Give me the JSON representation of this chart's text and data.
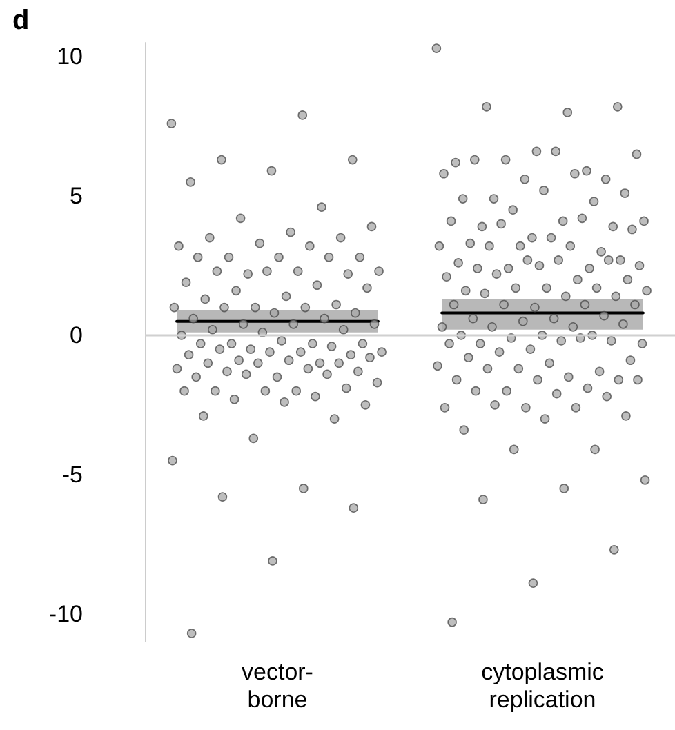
{
  "chart_data": {
    "type": "scatter",
    "title": "d",
    "categories": [
      "vector-\nborne",
      "cytoplasmic\nreplication"
    ],
    "ylim": [
      -11,
      10.5
    ],
    "yticks": [
      -10,
      -5,
      0,
      5,
      10
    ],
    "grid": false,
    "marker": "circle",
    "ref_lines": [
      {
        "axis": "y",
        "value": 0,
        "color": "#d0d0d0"
      }
    ],
    "series": [
      {
        "color": "#a8a8a8",
        "x": [
          "vector-\nborne",
          "vector-\nborne",
          "vector-\nborne",
          "vector-\nborne",
          "vector-\nborne",
          "vector-\nborne",
          "vector-\nborne",
          "vector-\nborne",
          "vector-\nborne",
          "vector-\nborne",
          "vector-\nborne",
          "vector-\nborne",
          "vector-\nborne",
          "vector-\nborne",
          "vector-\nborne",
          "vector-\nborne",
          "vector-\nborne",
          "vector-\nborne",
          "vector-\nborne",
          "vector-\nborne",
          "vector-\nborne",
          "vector-\nborne",
          "vector-\nborne",
          "vector-\nborne",
          "vector-\nborne",
          "vector-\nborne",
          "vector-\nborne",
          "vector-\nborne",
          "vector-\nborne",
          "vector-\nborne",
          "vector-\nborne",
          "vector-\nborne",
          "vector-\nborne",
          "vector-\nborne",
          "vector-\nborne",
          "vector-\nborne",
          "vector-\nborne",
          "vector-\nborne",
          "vector-\nborne",
          "vector-\nborne",
          "vector-\nborne",
          "vector-\nborne",
          "vector-\nborne",
          "vector-\nborne",
          "vector-\nborne",
          "vector-\nborne",
          "vector-\nborne",
          "vector-\nborne",
          "vector-\nborne",
          "vector-\nborne",
          "vector-\nborne",
          "vector-\nborne",
          "vector-\nborne",
          "vector-\nborne",
          "vector-\nborne",
          "vector-\nborne",
          "vector-\nborne",
          "vector-\nborne",
          "vector-\nborne",
          "vector-\nborne",
          "vector-\nborne",
          "vector-\nborne",
          "vector-\nborne",
          "vector-\nborne",
          "vector-\nborne",
          "vector-\nborne",
          "vector-\nborne",
          "vector-\nborne",
          "vector-\nborne",
          "vector-\nborne",
          "vector-\nborne",
          "vector-\nborne",
          "vector-\nborne",
          "vector-\nborne",
          "vector-\nborne",
          "vector-\nborne",
          "vector-\nborne",
          "vector-\nborne",
          "vector-\nborne",
          "vector-\nborne",
          "vector-\nborne",
          "vector-\nborne",
          "vector-\nborne",
          "vector-\nborne",
          "vector-\nborne",
          "vector-\nborne",
          "vector-\nborne",
          "vector-\nborne",
          "vector-\nborne",
          "vector-\nborne",
          "vector-\nborne",
          "vector-\nborne",
          "vector-\nborne",
          "vector-\nborne",
          "vector-\nborne"
        ],
        "values": [
          7.6,
          7.9,
          6.3,
          6.3,
          5.9,
          5.5,
          4.6,
          4.2,
          3.9,
          3.7,
          3.5,
          3.5,
          3.3,
          3.2,
          3.2,
          2.8,
          2.8,
          2.8,
          2.8,
          2.8,
          2.2,
          2.3,
          2.3,
          2.3,
          2.2,
          2.3,
          1.9,
          1.8,
          1.6,
          1.7,
          1.4,
          1.3,
          1.1,
          1.0,
          1.0,
          1.0,
          1.0,
          0.8,
          0.8,
          0.6,
          0.6,
          0.4,
          0.4,
          0.4,
          0.2,
          0.2,
          0.1,
          0.0,
          -0.3,
          -0.3,
          -0.3,
          -0.2,
          -0.3,
          -0.4,
          -0.5,
          -0.6,
          -0.6,
          -0.5,
          -0.7,
          -0.6,
          -0.7,
          -1.0,
          -0.9,
          -0.8,
          -0.9,
          -1.0,
          -1.0,
          -1.0,
          -1.2,
          -1.2,
          -1.3,
          -1.3,
          -1.5,
          -1.5,
          -1.4,
          -1.4,
          -1.7,
          -2.0,
          -2.0,
          -1.9,
          -2.0,
          -2.0,
          -2.2,
          -2.3,
          -2.5,
          -2.4,
          -2.9,
          -3.0,
          -3.7,
          -4.5,
          -5.5,
          -5.8,
          -6.2,
          -8.1,
          -10.7
        ]
      },
      {
        "color": "#a8a8a8",
        "x": [
          "cytoplasmic\nreplication",
          "cytoplasmic\nreplication",
          "cytoplasmic\nreplication",
          "cytoplasmic\nreplication",
          "cytoplasmic\nreplication",
          "cytoplasmic\nreplication",
          "cytoplasmic\nreplication",
          "cytoplasmic\nreplication",
          "cytoplasmic\nreplication",
          "cytoplasmic\nreplication",
          "cytoplasmic\nreplication",
          "cytoplasmic\nreplication",
          "cytoplasmic\nreplication",
          "cytoplasmic\nreplication",
          "cytoplasmic\nreplication",
          "cytoplasmic\nreplication",
          "cytoplasmic\nreplication",
          "cytoplasmic\nreplication",
          "cytoplasmic\nreplication",
          "cytoplasmic\nreplication",
          "cytoplasmic\nreplication",
          "cytoplasmic\nreplication",
          "cytoplasmic\nreplication",
          "cytoplasmic\nreplication",
          "cytoplasmic\nreplication",
          "cytoplasmic\nreplication",
          "cytoplasmic\nreplication",
          "cytoplasmic\nreplication",
          "cytoplasmic\nreplication",
          "cytoplasmic\nreplication",
          "cytoplasmic\nreplication",
          "cytoplasmic\nreplication",
          "cytoplasmic\nreplication",
          "cytoplasmic\nreplication",
          "cytoplasmic\nreplication",
          "cytoplasmic\nreplication",
          "cytoplasmic\nreplication",
          "cytoplasmic\nreplication",
          "cytoplasmic\nreplication",
          "cytoplasmic\nreplication",
          "cytoplasmic\nreplication",
          "cytoplasmic\nreplication",
          "cytoplasmic\nreplication",
          "cytoplasmic\nreplication",
          "cytoplasmic\nreplication",
          "cytoplasmic\nreplication",
          "cytoplasmic\nreplication",
          "cytoplasmic\nreplication",
          "cytoplasmic\nreplication",
          "cytoplasmic\nreplication",
          "cytoplasmic\nreplication",
          "cytoplasmic\nreplication",
          "cytoplasmic\nreplication",
          "cytoplasmic\nreplication",
          "cytoplasmic\nreplication",
          "cytoplasmic\nreplication",
          "cytoplasmic\nreplication",
          "cytoplasmic\nreplication",
          "cytoplasmic\nreplication",
          "cytoplasmic\nreplication",
          "cytoplasmic\nreplication",
          "cytoplasmic\nreplication",
          "cytoplasmic\nreplication",
          "cytoplasmic\nreplication",
          "cytoplasmic\nreplication",
          "cytoplasmic\nreplication",
          "cytoplasmic\nreplication",
          "cytoplasmic\nreplication",
          "cytoplasmic\nreplication",
          "cytoplasmic\nreplication",
          "cytoplasmic\nreplication",
          "cytoplasmic\nreplication",
          "cytoplasmic\nreplication",
          "cytoplasmic\nreplication",
          "cytoplasmic\nreplication",
          "cytoplasmic\nreplication",
          "cytoplasmic\nreplication",
          "cytoplasmic\nreplication",
          "cytoplasmic\nreplication",
          "cytoplasmic\nreplication",
          "cytoplasmic\nreplication",
          "cytoplasmic\nreplication",
          "cytoplasmic\nreplication",
          "cytoplasmic\nreplication",
          "cytoplasmic\nreplication",
          "cytoplasmic\nreplication",
          "cytoplasmic\nreplication",
          "cytoplasmic\nreplication",
          "cytoplasmic\nreplication",
          "cytoplasmic\nreplication",
          "cytoplasmic\nreplication",
          "cytoplasmic\nreplication",
          "cytoplasmic\nreplication",
          "cytoplasmic\nreplication",
          "cytoplasmic\nreplication",
          "cytoplasmic\nreplication",
          "cytoplasmic\nreplication",
          "cytoplasmic\nreplication",
          "cytoplasmic\nreplication",
          "cytoplasmic\nreplication",
          "cytoplasmic\nreplication",
          "cytoplasmic\nreplication",
          "cytoplasmic\nreplication",
          "cytoplasmic\nreplication",
          "cytoplasmic\nreplication",
          "cytoplasmic\nreplication",
          "cytoplasmic\nreplication",
          "cytoplasmic\nreplication",
          "cytoplasmic\nreplication",
          "cytoplasmic\nreplication",
          "cytoplasmic\nreplication",
          "cytoplasmic\nreplication",
          "cytoplasmic\nreplication",
          "cytoplasmic\nreplication",
          "cytoplasmic\nreplication",
          "cytoplasmic\nreplication"
        ],
        "values": [
          10.3,
          8.0,
          8.2,
          8.2,
          6.6,
          6.2,
          5.9,
          6.3,
          6.5,
          6.6,
          6.3,
          5.6,
          5.6,
          5.8,
          5.8,
          4.9,
          5.1,
          5.2,
          4.9,
          4.8,
          4.5,
          4.1,
          4.1,
          3.9,
          3.9,
          3.5,
          4.1,
          4.2,
          4.0,
          3.8,
          3.5,
          3.3,
          3.0,
          3.2,
          3.2,
          3.2,
          3.2,
          2.7,
          2.5,
          2.6,
          2.4,
          2.4,
          2.5,
          2.7,
          2.4,
          2.7,
          2.7,
          2.1,
          2.0,
          2.2,
          2.0,
          1.7,
          1.6,
          1.7,
          1.7,
          1.6,
          1.4,
          1.5,
          1.4,
          1.0,
          1.1,
          1.1,
          1.1,
          1.1,
          0.6,
          0.6,
          0.7,
          0.5,
          0.3,
          0.3,
          0.3,
          0.4,
          0.0,
          0.0,
          0.0,
          -0.1,
          -0.3,
          -0.2,
          -0.3,
          -0.2,
          -0.5,
          -0.3,
          -0.1,
          -0.6,
          -0.9,
          -1.0,
          -0.8,
          -1.3,
          -1.2,
          -1.1,
          -1.5,
          -1.2,
          -1.6,
          -1.6,
          -1.6,
          -1.9,
          -2.0,
          -1.6,
          -2.1,
          -2.0,
          -2.2,
          -2.6,
          -2.6,
          -2.6,
          -2.5,
          -2.9,
          -3.0,
          -3.4,
          -4.1,
          -4.1,
          -5.2,
          -5.5,
          -5.9,
          -7.7,
          -8.9,
          -10.3
        ]
      },
      {
        "type": "box",
        "color": "#b8b8b8",
        "x": [
          "vector-\nborne",
          "cytoplasmic\nreplication"
        ],
        "boxes": [
          {
            "low": 0.1,
            "q1": 0.1,
            "median": 0.5,
            "q3": 0.9,
            "high": 0.9
          },
          {
            "low": 0.2,
            "q1": 0.2,
            "median": 0.8,
            "q3": 1.3,
            "high": 1.3
          }
        ]
      }
    ]
  }
}
